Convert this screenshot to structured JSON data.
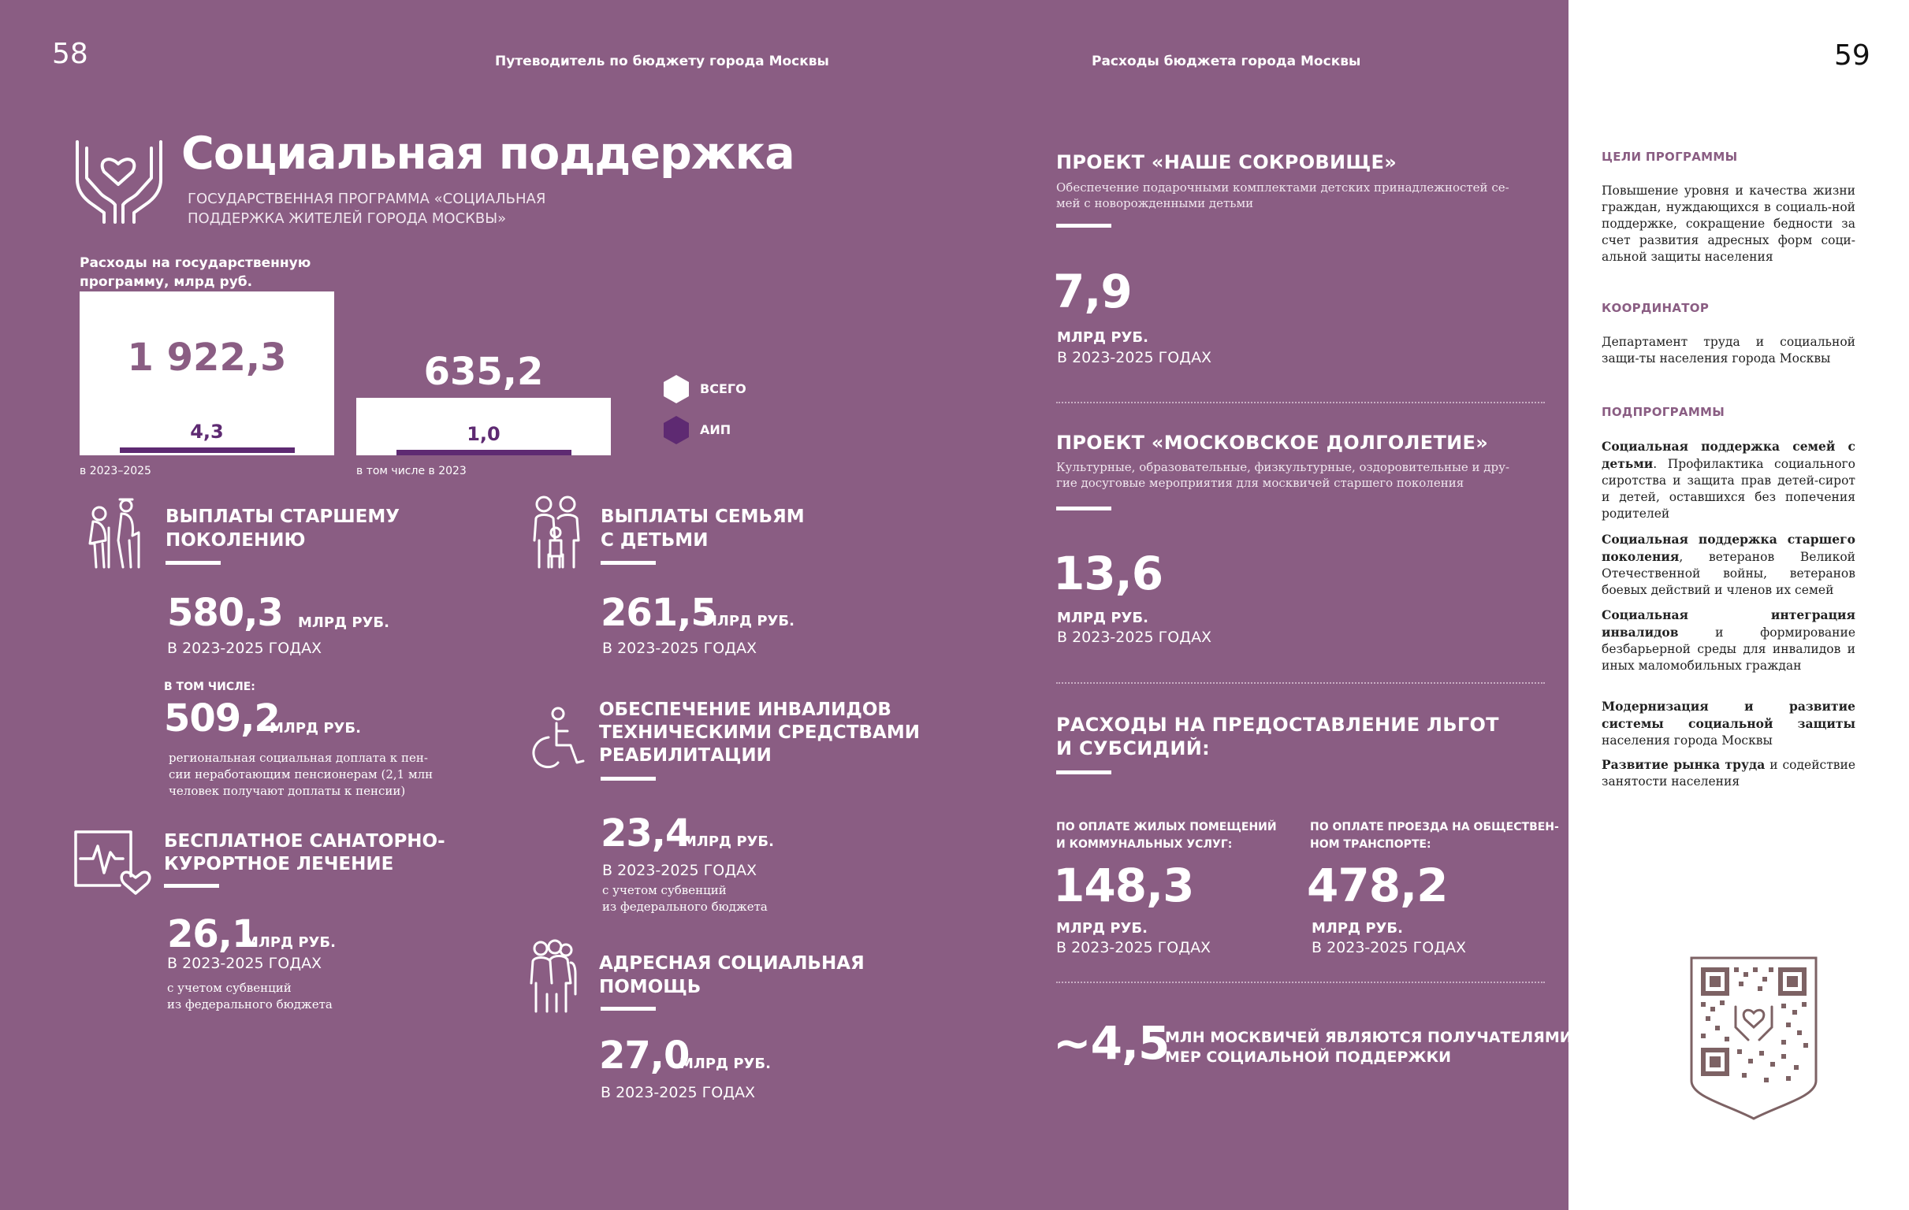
{
  "page": {
    "left_number": "58",
    "right_number": "59",
    "header_left": "Путеводитель по бюджету города Москвы",
    "header_right": "Расходы бюджета города Москвы"
  },
  "title": {
    "main": "Социальная поддержка",
    "subtitle_line1": "ГОСУДАРСТВЕННАЯ ПРОГРАММА «СОЦИАЛЬНАЯ",
    "subtitle_line2": "ПОДДЕРЖКА ЖИТЕЛЕЙ ГОРОДА МОСКВЫ»"
  },
  "expenses": {
    "label_line1": "Расходы на государственную",
    "label_line2": "программу, млрд руб.",
    "total_period_value": "1 922,3",
    "aip_period_value": "4,3",
    "total_period_caption": "в 2023–2025",
    "total_year_value": "635,2",
    "aip_year_value": "1,0",
    "year_caption": "в том числе в 2023",
    "legend_total": "ВСЕГО",
    "legend_aip": "АИП",
    "color_total": "#ffffff",
    "color_aip": "#5e2a72"
  },
  "elderly": {
    "title_line1": "ВЫПЛАТЫ СТАРШЕМУ",
    "title_line2": "ПОКОЛЕНИЮ",
    "value": "580,3",
    "unit": "МЛРД РУБ.",
    "years": "В 2023-2025 ГОДАХ",
    "including_label": "В ТОМ ЧИСЛЕ:",
    "including_value": "509,2",
    "including_unit": "МЛРД РУБ.",
    "note_line1": "региональная социальная доплата к пен-",
    "note_line2": "сии неработающим пенсионерам (2,1 млн",
    "note_line3": "человек получают доплаты к пенсии)",
    "icon": "elderly-couple-icon"
  },
  "families": {
    "title_line1": "ВЫПЛАТЫ СЕМЬЯМ",
    "title_line2": "С ДЕТЬМИ",
    "value": "261,5",
    "unit": "МЛРД РУБ.",
    "years": "В 2023-2025 ГОДАХ",
    "icon": "family-icon"
  },
  "disabled": {
    "title_line1": "ОБЕСПЕЧЕНИЕ ИНВАЛИДОВ",
    "title_line2": "ТЕХНИЧЕСКИМИ СРЕДСТВАМИ",
    "title_line3": "РЕАБИЛИТАЦИИ",
    "value": "23,4",
    "unit": "МЛРД РУБ.",
    "years": "В 2023-2025 ГОДАХ",
    "note_line1": "с учетом субвенций",
    "note_line2": "из федерального бюджета",
    "icon": "wheelchair-icon"
  },
  "sanatorium": {
    "title_line1": "БЕСПЛАТНОЕ САНАТОРНО-",
    "title_line2": "КУРОРТНОЕ ЛЕЧЕНИЕ",
    "value": "26,1",
    "unit": "МЛРД РУБ.",
    "years": "В 2023-2025 ГОДАХ",
    "note_line1": "с учетом субвенций",
    "note_line2": "из федерального бюджета",
    "icon": "heart-monitor-icon"
  },
  "targeted": {
    "title_line1": "АДРЕСНАЯ СОЦИАЛЬНАЯ",
    "title_line2": "ПОМОЩЬ",
    "value": "27,0",
    "unit": "МЛРД РУБ.",
    "years": "В 2023-2025 ГОДАХ",
    "icon": "people-group-icon"
  },
  "treasure": {
    "title": "ПРОЕКТ «НАШЕ СОКРОВИЩЕ»",
    "desc_line1": "Обеспечение подарочными комплектами детских принадлежностей се-",
    "desc_line2": "мей с новорожденными детьми",
    "value": "7,9",
    "unit": "МЛРД РУБ.",
    "years": "В 2023-2025 ГОДАХ"
  },
  "longevity": {
    "title": "ПРОЕКТ «МОСКОВСКОЕ ДОЛГОЛЕТИЕ»",
    "desc_line1": "Культурные, образовательные, физкультурные, оздоровительные и дру-",
    "desc_line2": "гие досуговые мероприятия для москвичей старшего поколения",
    "value": "13,6",
    "unit": "МЛРД РУБ.",
    "years": "В 2023-2025 ГОДАХ"
  },
  "benefits": {
    "title_line1": "РАСХОДЫ НА ПРЕДОСТАВЛЕНИЕ ЛЬГОТ",
    "title_line2": "И СУБСИДИЙ:",
    "housing_line1": "ПО ОПЛАТЕ ЖИЛЫХ ПОМЕЩЕНИЙ",
    "housing_line2": "И КОММУНАЛЬНЫХ УСЛУГ:",
    "housing_value": "148,3",
    "housing_unit": "МЛРД РУБ.",
    "housing_years": "В 2023-2025 ГОДАХ",
    "transport_line1": "ПО ОПЛАТЕ ПРОЕЗДА НА ОБЩЕСТВЕН-",
    "transport_line2": "НОМ ТРАНСПОРТЕ:",
    "transport_value": "478,2",
    "transport_unit": "МЛРД РУБ.",
    "transport_years": "В 2023-2025 ГОДАХ"
  },
  "recipients": {
    "value": "~4,5",
    "text_line1": "МЛН МОСКВИЧЕЙ ЯВЛЯЮТСЯ ПОЛУЧАТЕЛЯМИ",
    "text_line2": "МЕР СОЦИАЛЬНОЙ ПОДДЕРЖКИ"
  },
  "sidebar": {
    "goals_head": "ЦЕЛИ ПРОГРАММЫ",
    "goals_text": "Повышение уровня и качества жизни граждан, нуждающихся в социаль-ной поддержке, сокращение бедности за счет развития адресных форм соци-альной защиты населения",
    "coord_head": "КООРДИНАТОР",
    "coord_text": "Департамент труда и социальной защи-ты населения города Москвы",
    "sub_head": "ПОДПРОГРАММЫ",
    "sub1_bold": "Социальная поддержка семей с детьми",
    "sub1_rest": ". Профилактика социального сиротства и защита прав детей-сирот и детей, оставшихся без попечения родителей",
    "sub2_bold": "Социальная поддержка старшего поколения",
    "sub2_rest": ", ветеранов Великой Отечественной войны, ветеранов боевых действий и членов их семей",
    "sub3_bold": "Социальная интеграция инвалидов",
    "sub3_rest": " и формирование безбарьерной среды для инвалидов и иных маломобильных граждан",
    "sub4_bold": "Модернизация и развитие системы социальной защиты",
    "sub4_rest": " населения города Москвы",
    "sub5_bold": "Развитие рынка труда",
    "sub5_rest": " и содействие занятости населения"
  },
  "qr": {
    "icon": "qr-code-shield"
  }
}
